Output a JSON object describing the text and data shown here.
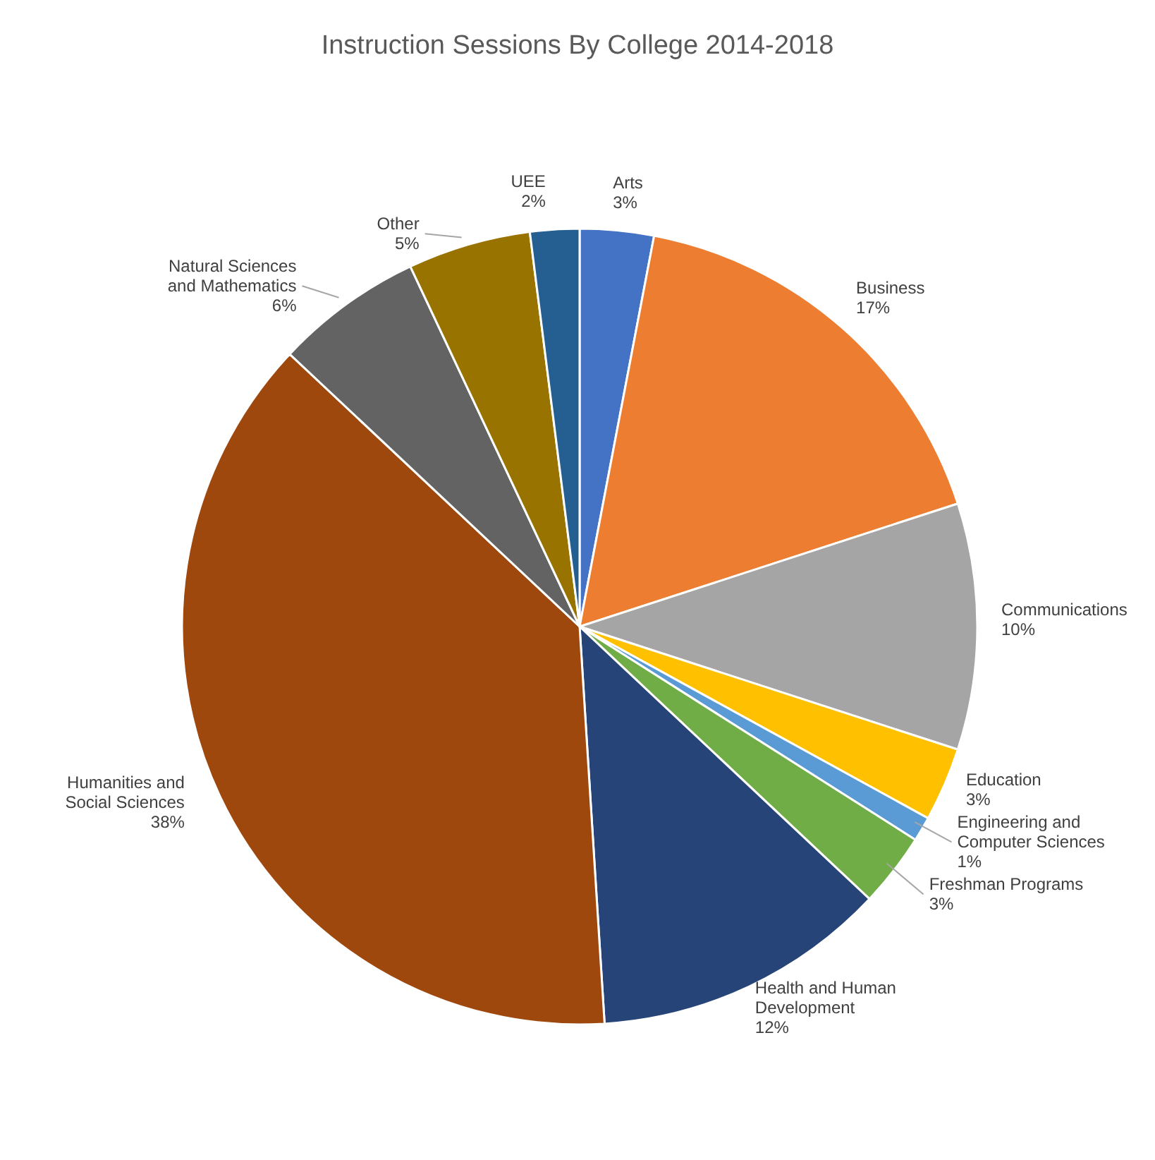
{
  "chart_data": {
    "type": "pie",
    "title": "Instruction Sessions By College 2014-2018",
    "categories": [
      "Arts",
      "Business",
      "Communications",
      "Education",
      "Engineering and Computer Sciences",
      "Freshman Programs",
      "Health and Human Development",
      "Humanities and Social Sciences",
      "Natural Sciences and Mathematics",
      "Other",
      "UEE"
    ],
    "values": [
      3,
      17,
      10,
      3,
      1,
      3,
      12,
      38,
      6,
      5,
      2
    ],
    "value_labels": [
      "3%",
      "17%",
      "10%",
      "3%",
      "1%",
      "3%",
      "12%",
      "38%",
      "6%",
      "5%",
      "2%"
    ],
    "colors": [
      "#4472c4",
      "#ed7d31",
      "#a5a5a5",
      "#ffc000",
      "#5b9bd5",
      "#70ad47",
      "#264478",
      "#9e480e",
      "#636363",
      "#997300",
      "#255e91"
    ],
    "legend": false
  }
}
